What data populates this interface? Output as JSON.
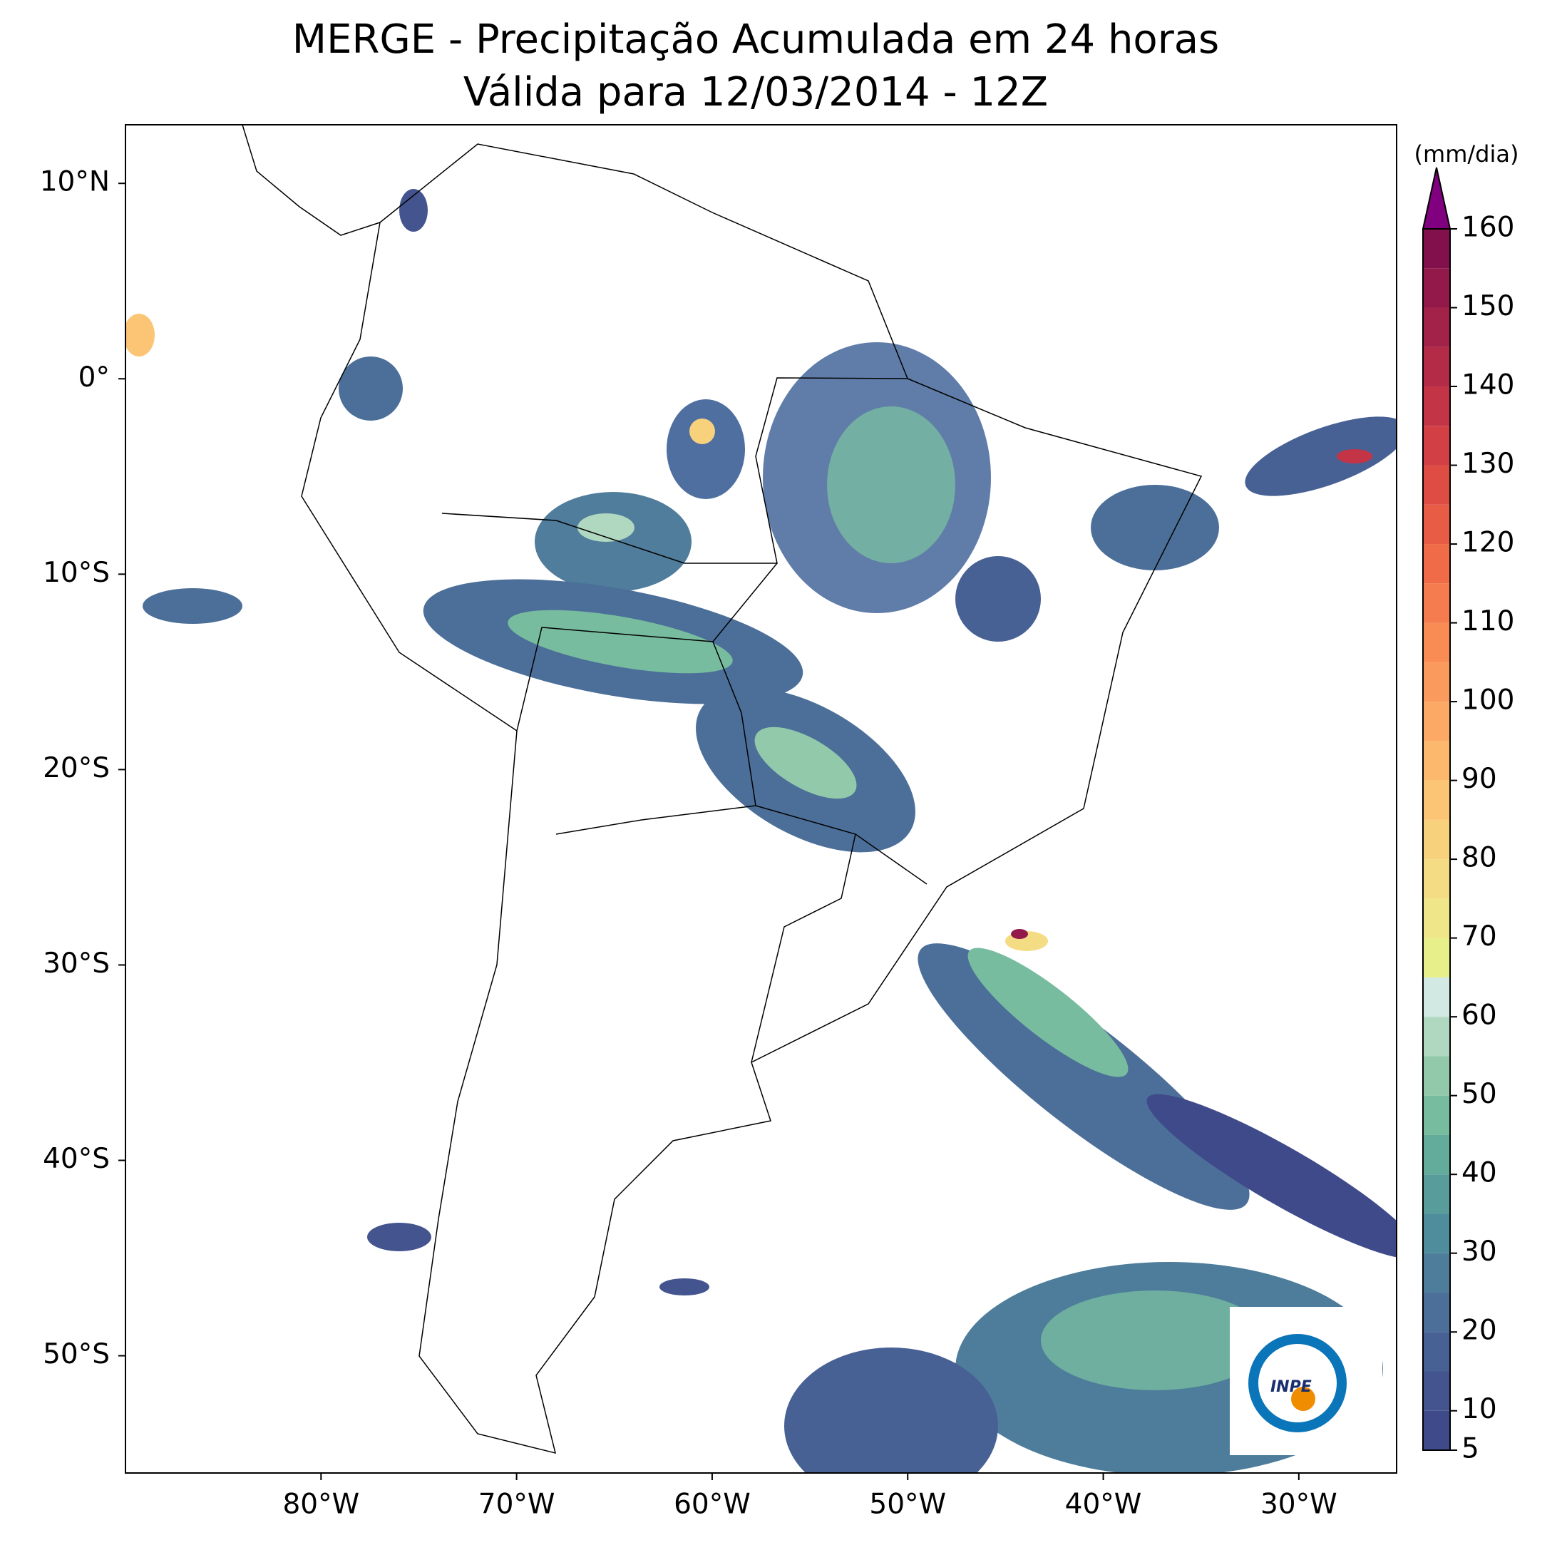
{
  "chart_data": {
    "type": "map",
    "title": "MERGE - Precipitação Acumulada em 24 horas",
    "subtitle": "Válida para 12/03/2014 - 12Z",
    "xlim": [
      -90,
      -25
    ],
    "ylim": [
      -56,
      13
    ],
    "xticks": [
      {
        "value": -80,
        "label": "80°W"
      },
      {
        "value": -70,
        "label": "70°W"
      },
      {
        "value": -60,
        "label": "60°W"
      },
      {
        "value": -50,
        "label": "50°W"
      },
      {
        "value": -40,
        "label": "40°W"
      },
      {
        "value": -30,
        "label": "30°W"
      }
    ],
    "yticks": [
      {
        "value": 10,
        "label": "10°N"
      },
      {
        "value": 0,
        "label": "0°"
      },
      {
        "value": -10,
        "label": "10°S"
      },
      {
        "value": -20,
        "label": "20°S"
      },
      {
        "value": -30,
        "label": "30°S"
      },
      {
        "value": -40,
        "label": "40°S"
      },
      {
        "value": -50,
        "label": "50°S"
      }
    ],
    "colorbar": {
      "label": "(mm/dia)",
      "levels": [
        5,
        10,
        15,
        20,
        25,
        30,
        35,
        40,
        45,
        50,
        55,
        60,
        65,
        70,
        75,
        80,
        85,
        90,
        95,
        100,
        105,
        110,
        115,
        120,
        125,
        130,
        135,
        140,
        145,
        150,
        155,
        160
      ],
      "colors": [
        "#3f4a8a",
        "#44548f",
        "#486194",
        "#4c6f99",
        "#4e7d9b",
        "#4f8c9c",
        "#589c9b",
        "#63ac9b",
        "#78bca0",
        "#92c9ab",
        "#b0d8c0",
        "#d2e8e2",
        "#e6ef89",
        "#eee689",
        "#f4dc84",
        "#f8d17d",
        "#fbc575",
        "#fcb86d",
        "#fca965",
        "#fb9a5d",
        "#f98b55",
        "#f57c4e",
        "#f06b48",
        "#e85b45",
        "#de4c44",
        "#d23f45",
        "#c43447",
        "#b42b48",
        "#a3224a",
        "#93194b",
        "#82104c"
      ],
      "extend_color": "#800080",
      "ticks": [
        5,
        10,
        20,
        30,
        40,
        50,
        60,
        70,
        80,
        90,
        100,
        110,
        120,
        130,
        140,
        150,
        160
      ]
    },
    "logo": "INPE"
  }
}
